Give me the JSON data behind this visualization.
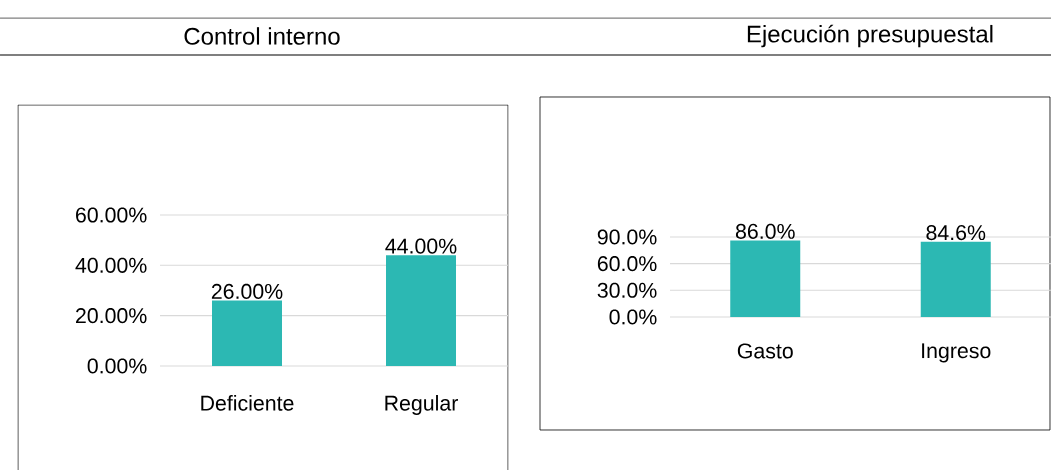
{
  "chart_data": [
    {
      "type": "bar",
      "title": "Control interno",
      "categories": [
        "Deficiente",
        "Regular"
      ],
      "values": [
        26,
        44
      ],
      "value_labels": [
        "26.00%",
        "44.00%"
      ],
      "color": "#2cb8b3",
      "ylim": [
        0,
        60
      ],
      "yticks": [
        {
          "value": 0,
          "label": "0.00%"
        },
        {
          "value": 20,
          "label": "20.00%"
        },
        {
          "value": 40,
          "label": "40.00%"
        },
        {
          "value": 60,
          "label": "60.00%"
        }
      ],
      "grid": "y"
    },
    {
      "type": "bar",
      "title": "Ejecución presupuestal",
      "categories": [
        "Gasto",
        "Ingreso"
      ],
      "values": [
        86.0,
        84.6
      ],
      "value_labels": [
        "86.0%",
        "84.6%"
      ],
      "color": "#2cb8b3",
      "ylim": [
        0,
        90
      ],
      "yticks": [
        {
          "value": 0,
          "label": "0.0%"
        },
        {
          "value": 30,
          "label": "30.0%"
        },
        {
          "value": 60,
          "label": "60.0%"
        },
        {
          "value": 90,
          "label": "90.0%"
        }
      ],
      "grid": "y"
    }
  ]
}
